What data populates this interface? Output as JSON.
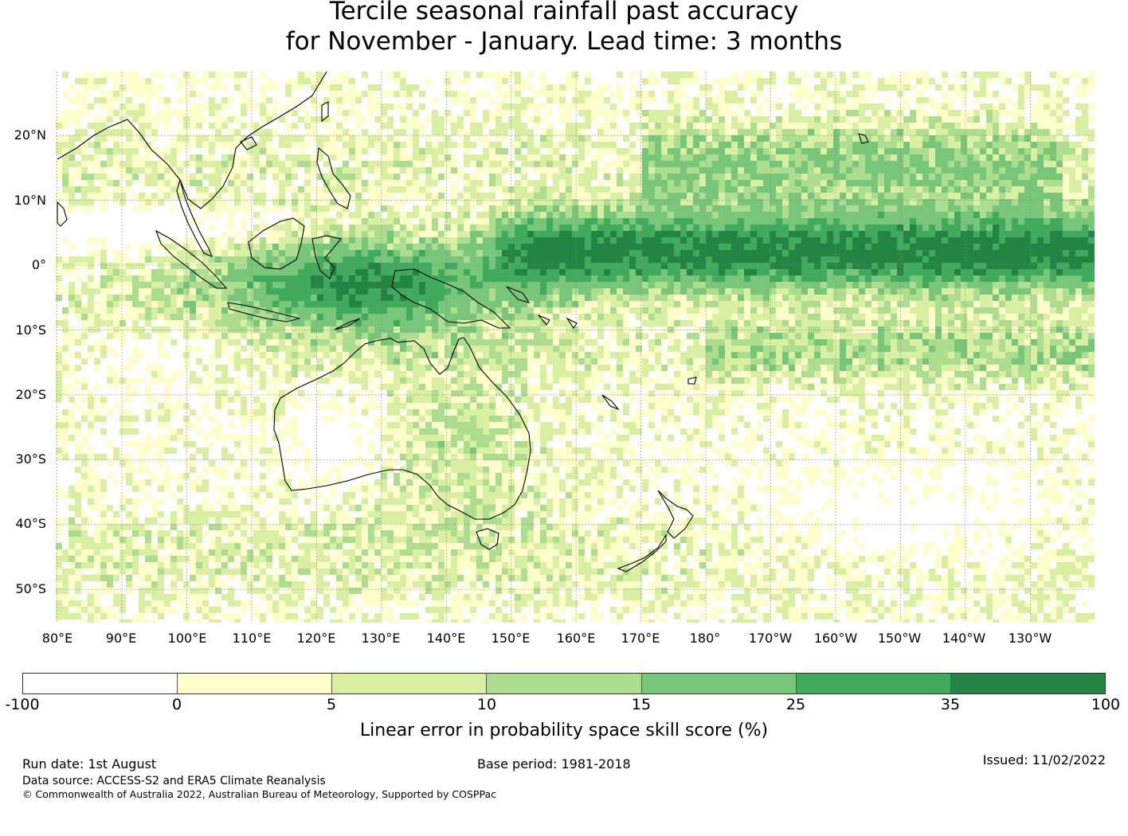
{
  "header": {
    "title_line1": "Tercile seasonal rainfall past accuracy",
    "title_line2": "for November - January. Lead time: 3 months"
  },
  "map": {
    "latitude_labels": [
      "20°N",
      "10°N",
      "0°",
      "10°S",
      "20°S",
      "30°S",
      "40°S",
      "50°S"
    ],
    "longitude_labels": [
      "80°E",
      "90°E",
      "100°E",
      "110°E",
      "120°E",
      "130°E",
      "140°E",
      "150°E",
      "160°E",
      "170°E",
      "180°",
      "170°W",
      "160°W",
      "150°W",
      "140°W",
      "130°W"
    ],
    "lat_range": [
      -55,
      30
    ],
    "lon_range": [
      80,
      240
    ]
  },
  "legend": {
    "label": "Linear error in probability space skill score (%)",
    "ticks": [
      "-100",
      "0",
      "5",
      "10",
      "15",
      "25",
      "35",
      "100"
    ],
    "colors": [
      "#ffffff",
      "#ffffcc",
      "#d9f0a3",
      "#addd8e",
      "#78c679",
      "#41ab5d",
      "#238443"
    ]
  },
  "footer": {
    "run_date": "Run date: 1st August",
    "base_period": "Base period: 1981-2018",
    "issued": "Issued: 11/02/2022",
    "data_source": "Data source: ACCESS-S2 and ERA5 Climate Reanalysis",
    "copyright": "© Commonwealth of Australia 2022, Australian Bureau of Meteorology, Supported by COSPPac"
  }
}
